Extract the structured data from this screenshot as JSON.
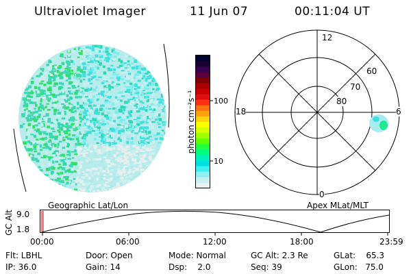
{
  "header": {
    "title": "Ultraviolet Imager",
    "date": "11 Jun 07",
    "time": "00:11:04 UT"
  },
  "colorbar": {
    "label": "photon cm⁻²s⁻¹",
    "ticks": [
      "100",
      "10"
    ],
    "colors": [
      "#000033",
      "#1a0033",
      "#3a0050",
      "#5a003a",
      "#800000",
      "#a80000",
      "#c80000",
      "#e01010",
      "#ff3010",
      "#ff7010",
      "#ffa010",
      "#ffd010",
      "#ffff00",
      "#d8ff00",
      "#a0ff00",
      "#60ff00",
      "#20ff40",
      "#00ff80",
      "#00f0c0",
      "#00e0e0",
      "#40f0f0",
      "#90f0f0",
      "#c8f0f0",
      "#e8f0f0"
    ]
  },
  "polar_plot": {
    "mlt_labels": [
      "12",
      "18",
      "6",
      "0"
    ],
    "lat_labels": [
      "60",
      "70",
      "80"
    ]
  },
  "altitude_plot": {
    "left_label": "Geographic Lat/Lon",
    "right_label": "Apex MLat/MLT",
    "ylabel": "GC Alt",
    "y_ticks": [
      "9.0",
      "1.8"
    ],
    "x_ticks": [
      "00:00",
      "06:00",
      "12:00",
      "18:00",
      "23:59"
    ]
  },
  "info": {
    "flt": "Flt: LBHL",
    "ip": "IP: 36.0",
    "door": "Door: Open",
    "gain": "Gain: 14",
    "mode": "Mode: Normal",
    "dsp": "Dsp:    2.0",
    "gcalt": "GC Alt: 2.3 Re",
    "seq": "Seq: 39",
    "glat": "GLat:    65.3",
    "glon": "GLon:   75.0"
  }
}
